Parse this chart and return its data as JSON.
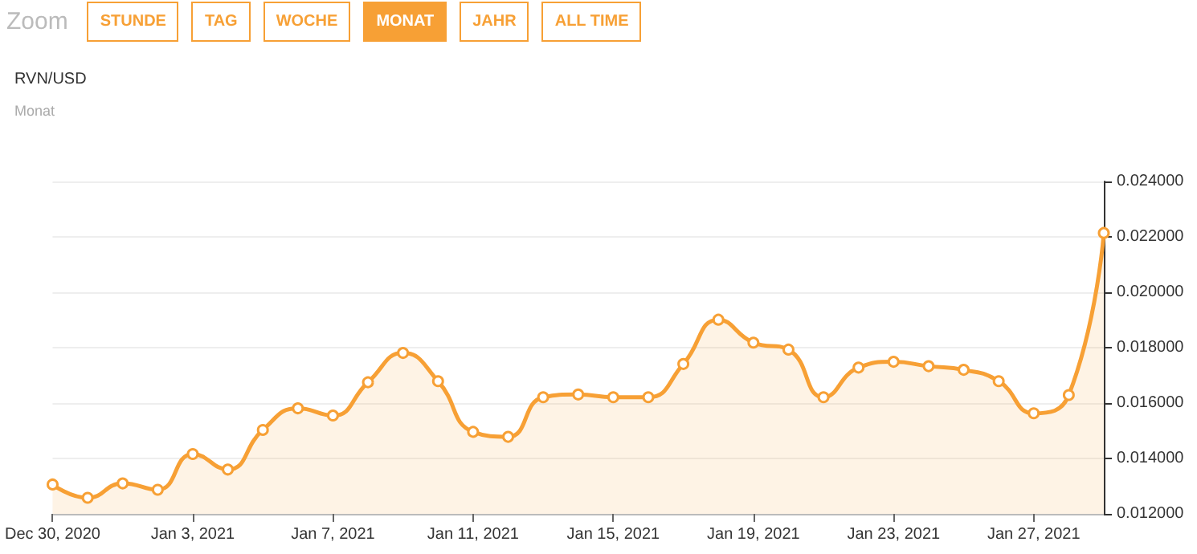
{
  "chart_data": {
    "type": "area",
    "title": "RVN/USD",
    "subtitle": "Monat",
    "annotations": [
      "Zoom",
      "STUNDE",
      "TAG",
      "WOCHE",
      "MONAT",
      "JAHR",
      "ALL TIME"
    ],
    "x": [
      "2020-12-30",
      "2020-12-31",
      "2021-01-01",
      "2021-01-02",
      "2021-01-03",
      "2021-01-04",
      "2021-01-05",
      "2021-01-06",
      "2021-01-07",
      "2021-01-08",
      "2021-01-09",
      "2021-01-10",
      "2021-01-11",
      "2021-01-12",
      "2021-01-13",
      "2021-01-14",
      "2021-01-15",
      "2021-01-16",
      "2021-01-17",
      "2021-01-18",
      "2021-01-19",
      "2021-01-20",
      "2021-01-21",
      "2021-01-22",
      "2021-01-23",
      "2021-01-24",
      "2021-01-25",
      "2021-01-26",
      "2021-01-27",
      "2021-01-28",
      "2021-01-29"
    ],
    "series": [
      {
        "color": "#f7a035",
        "values": [
          0.01306,
          0.01258,
          0.0131,
          0.01287,
          0.01416,
          0.0136,
          0.01503,
          0.01581,
          0.01555,
          0.01675,
          0.01781,
          0.01679,
          0.01496,
          0.01478,
          0.01621,
          0.01631,
          0.01621,
          0.01621,
          0.01741,
          0.01901,
          0.01818,
          0.01793,
          0.01621,
          0.01728,
          0.01749,
          0.01733,
          0.0172,
          0.01679,
          0.01563,
          0.01629,
          0.02214
        ]
      }
    ],
    "xlim": [
      "2020-12-30",
      "2021-01-29"
    ],
    "xticks": [
      {
        "value": "2020-12-30",
        "label": "Dec 30, 2020"
      },
      {
        "value": "2021-01-03",
        "label": "Jan 3, 2021"
      },
      {
        "value": "2021-01-07",
        "label": "Jan 7, 2021"
      },
      {
        "value": "2021-01-11",
        "label": "Jan 11, 2021"
      },
      {
        "value": "2021-01-15",
        "label": "Jan 15, 2021"
      },
      {
        "value": "2021-01-19",
        "label": "Jan 19, 2021"
      },
      {
        "value": "2021-01-23",
        "label": "Jan 23, 2021"
      },
      {
        "value": "2021-01-27",
        "label": "Jan 27, 2021"
      }
    ],
    "ylim": [
      0.012,
      0.024
    ],
    "yticks": [
      {
        "value": 0.012,
        "label": "0.012000"
      },
      {
        "value": 0.014,
        "label": "0.014000"
      },
      {
        "value": 0.016,
        "label": "0.016000"
      },
      {
        "value": 0.018,
        "label": "0.018000"
      },
      {
        "value": 0.02,
        "label": "0.020000"
      },
      {
        "value": 0.022,
        "label": "0.022000"
      },
      {
        "value": 0.024,
        "label": "0.024000"
      }
    ],
    "grid": "y",
    "marker": "circle",
    "line_style": "solid"
  }
}
